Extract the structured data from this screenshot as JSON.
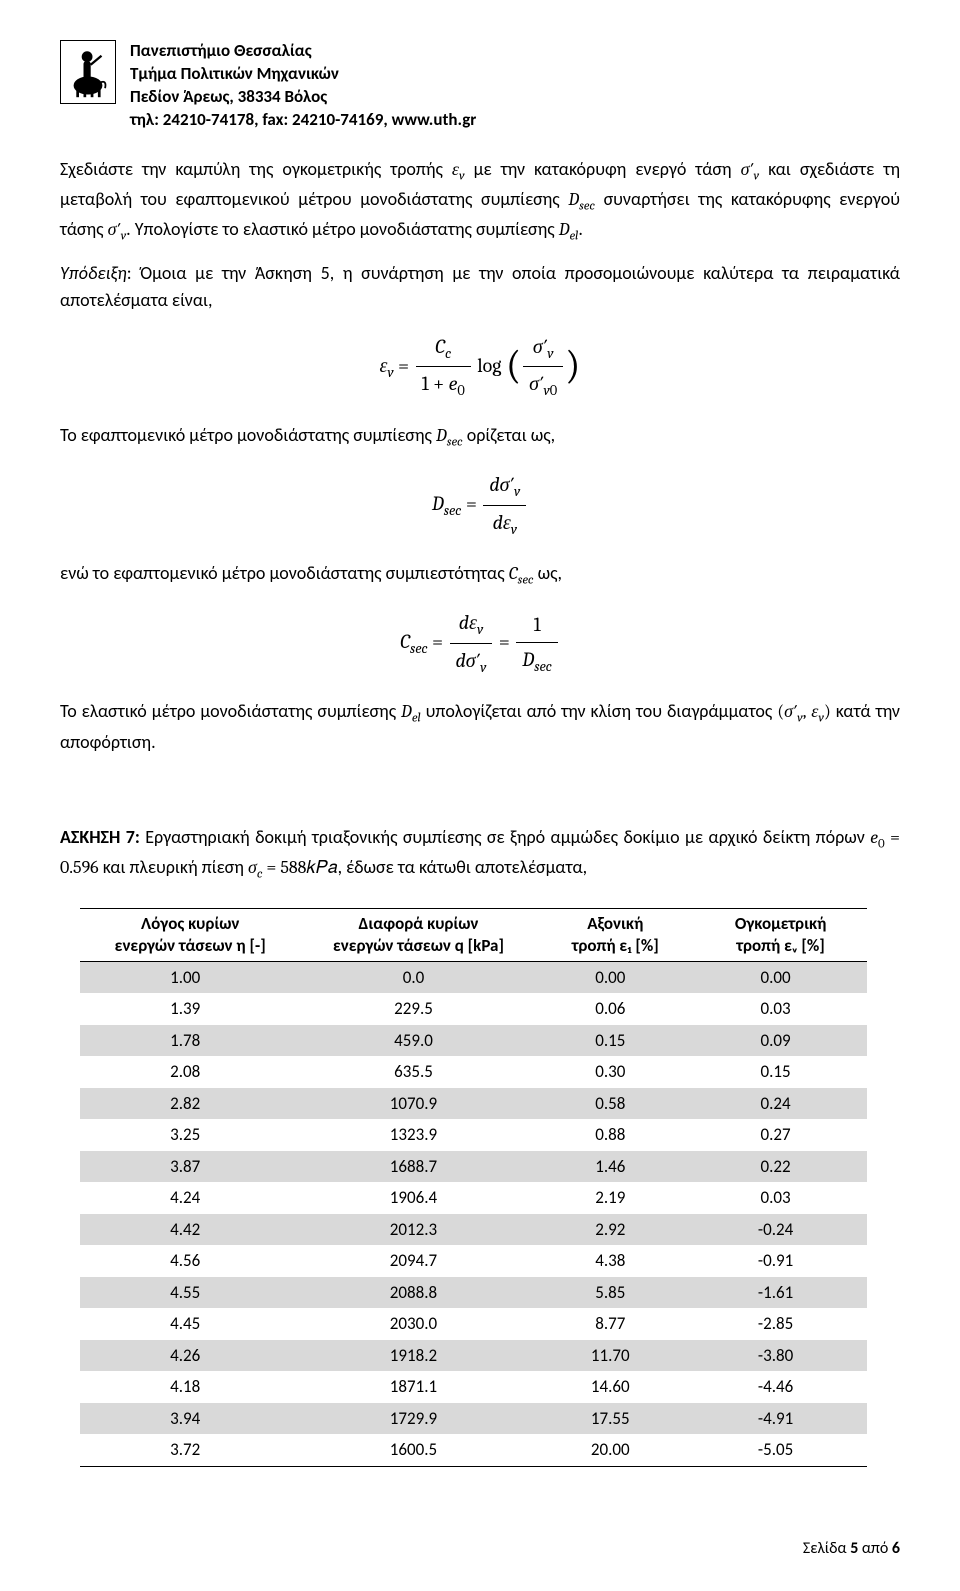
{
  "header": {
    "line1": "Πανεπιστήμιο Θεσσαλίας",
    "line2": "Τμήμα Πολιτικών Μηχανικών",
    "line3": "Πεδίον Άρεως, 38334 Βόλος",
    "line4": "τηλ: 24210-74178, fax: 24210-74169, www.uth.gr"
  },
  "para1a": "Σχεδιάστε την καμπύλη της ογκομετρικής τροπής ",
  "para1b": " με την κατακόρυφη ενεργό τάση ",
  "para1c": " και σχεδιάστε τη μεταβολή του εφαπτομενικού μέτρου μονοδιάστατης συμπίεσης ",
  "para1d": " συναρτήσει της κατακόρυφης ενεργού τάσης ",
  "para1e": ". Υπολογίστε το ελαστικό μέτρο μονοδιάστατης συμπίεσης ",
  "para1f": ".",
  "hint_label": "Υπόδειξη",
  "para2": ": Όμοια με την Άσκηση 5, η συνάρτηση με την οποία προσομοιώνουμε καλύτερα τα πειραματικά αποτελέσματα είναι,",
  "para3a": "Το εφαπτομενικό μέτρο μονοδιάστατης συμπίεσης ",
  "para3b": " ορίζεται ως,",
  "para4a": "ενώ το εφαπτομενικό μέτρο μονοδιάστατης συμπιεστότητας ",
  "para4b": " ως,",
  "para5a": "Το ελαστικό μέτρο μονοδιάστατης συμπίεσης ",
  "para5b": " υπολογίζεται από την κλίση του διαγράμματος ",
  "para5c": " κατά την αποφόρτιση.",
  "ex7_title": "ΑΣΚΗΣΗ 7:",
  "ex7a": " Εργαστηριακή δοκιμή τριαξονικής συμπίεσης σε ξηρό αμμώδες δοκίμιο με αρχικό δείκτη πόρων ",
  "ex7b": " και πλευρική πίεση ",
  "ex7c": ", έδωσε τα κάτωθι αποτελέσματα,",
  "e0_val": "0.596",
  "sigc_val": "588𝑘𝑃𝑎",
  "table": {
    "headers": {
      "eta1": "Λόγος κυρίων",
      "eta2": "ενεργών τάσεων η [-]",
      "q1": "Διαφορά κυρίων",
      "q2": "ενεργών τάσεων q [kPa]",
      "e1a": "Αξονική",
      "e1b": "τροπή ε₁ [%]",
      "eva": "Ογκομετρική",
      "evb": "τροπή εᵥ [%]"
    },
    "rows": [
      [
        "1.00",
        "0.0",
        "0.00",
        "0.00"
      ],
      [
        "1.39",
        "229.5",
        "0.06",
        "0.03"
      ],
      [
        "1.78",
        "459.0",
        "0.15",
        "0.09"
      ],
      [
        "2.08",
        "635.5",
        "0.30",
        "0.15"
      ],
      [
        "2.82",
        "1070.9",
        "0.58",
        "0.24"
      ],
      [
        "3.25",
        "1323.9",
        "0.88",
        "0.27"
      ],
      [
        "3.87",
        "1688.7",
        "1.46",
        "0.22"
      ],
      [
        "4.24",
        "1906.4",
        "2.19",
        "0.03"
      ],
      [
        "4.42",
        "2012.3",
        "2.92",
        "-0.24"
      ],
      [
        "4.56",
        "2094.7",
        "4.38",
        "-0.91"
      ],
      [
        "4.55",
        "2088.8",
        "5.85",
        "-1.61"
      ],
      [
        "4.45",
        "2030.0",
        "8.77",
        "-2.85"
      ],
      [
        "4.26",
        "1918.2",
        "11.70",
        "-3.80"
      ],
      [
        "4.18",
        "1871.1",
        "14.60",
        "-4.46"
      ],
      [
        "3.94",
        "1729.9",
        "17.55",
        "-4.91"
      ],
      [
        "3.72",
        "1600.5",
        "20.00",
        "-5.05"
      ]
    ]
  },
  "footer_a": "Σελίδα ",
  "footer_b": "5",
  "footer_c": " από ",
  "footer_d": "6"
}
